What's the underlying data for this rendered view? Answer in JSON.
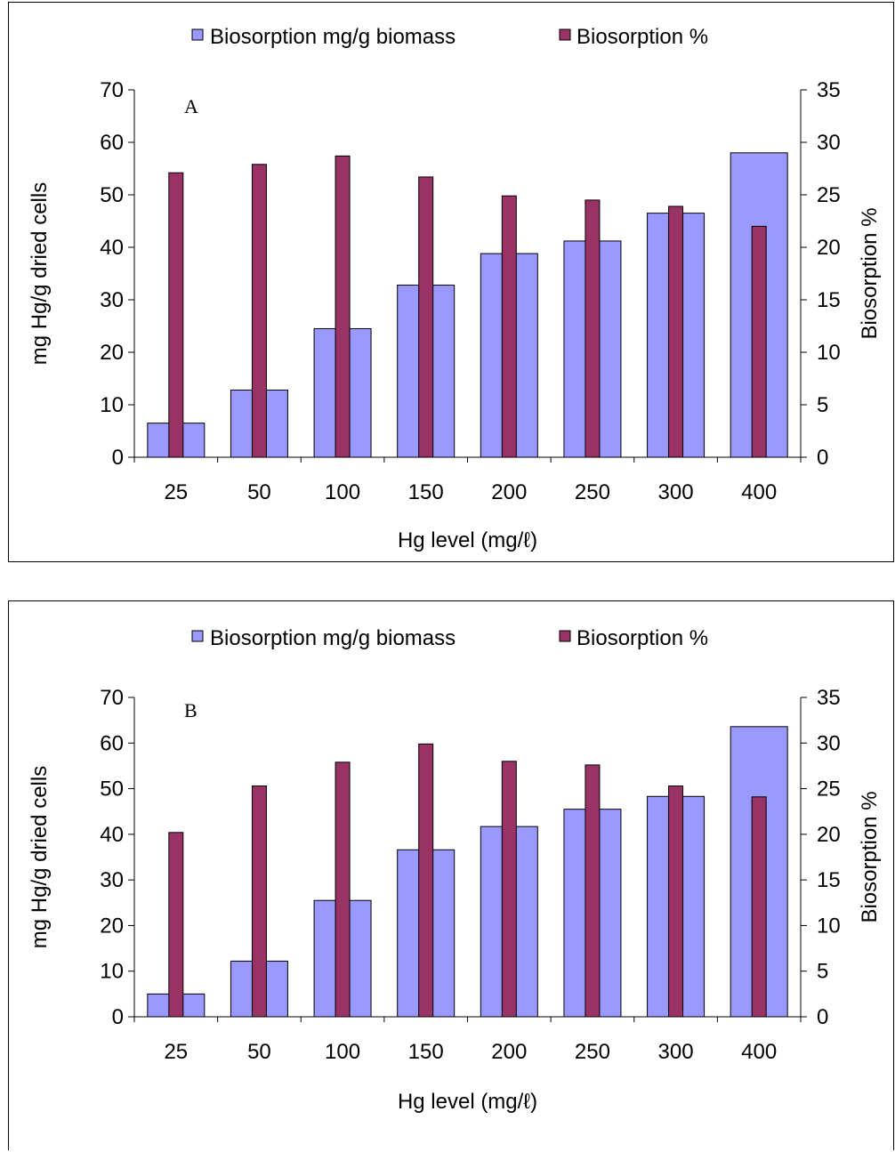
{
  "chart_data": [
    {
      "type": "bar",
      "annotation": "A",
      "categories": [
        "25",
        "50",
        "100",
        "150",
        "200",
        "250",
        "300",
        "400"
      ],
      "xlabel": "Hg level (mg/ℓ)",
      "ylabel": "mg Hg/g dried cells",
      "y2label": "Biosorption %",
      "ylim": [
        0,
        70
      ],
      "y2lim": [
        0,
        35
      ],
      "yticks": [
        "0",
        "10",
        "20",
        "30",
        "40",
        "50",
        "60",
        "70"
      ],
      "y2ticks": [
        "0",
        "5",
        "10",
        "15",
        "20",
        "25",
        "30",
        "35"
      ],
      "legend_position": "top",
      "grid": false,
      "series": [
        {
          "name": "Biosorption mg/g biomass",
          "axis": "left",
          "color": "#9999ff",
          "values": [
            6.5,
            12.8,
            24.5,
            32.8,
            38.8,
            41.2,
            46.5,
            58
          ]
        },
        {
          "name": "Biosorption %",
          "axis": "right",
          "color": "#993366",
          "values": [
            27.1,
            27.9,
            28.7,
            26.7,
            24.9,
            24.5,
            23.9,
            22
          ]
        }
      ]
    },
    {
      "type": "bar",
      "annotation": "B",
      "categories": [
        "25",
        "50",
        "100",
        "150",
        "200",
        "250",
        "300",
        "400"
      ],
      "xlabel": "Hg level (mg/ℓ)",
      "ylabel": "mg Hg/g dried cells",
      "y2label": "Biosorption %",
      "ylim": [
        0,
        70
      ],
      "y2lim": [
        0,
        35
      ],
      "yticks": [
        "0",
        "10",
        "20",
        "30",
        "40",
        "50",
        "60",
        "70"
      ],
      "y2ticks": [
        "0",
        "5",
        "10",
        "15",
        "20",
        "25",
        "30",
        "35"
      ],
      "legend_position": "top",
      "grid": false,
      "series": [
        {
          "name": "Biosorption mg/g biomass",
          "axis": "left",
          "color": "#9999ff",
          "values": [
            5,
            12.2,
            25.5,
            36.6,
            41.7,
            45.5,
            48.3,
            63.6
          ]
        },
        {
          "name": "Biosorption %",
          "axis": "right",
          "color": "#993366",
          "values": [
            20.2,
            25.3,
            27.9,
            29.9,
            28,
            27.6,
            25.3,
            24.1
          ]
        }
      ]
    }
  ]
}
